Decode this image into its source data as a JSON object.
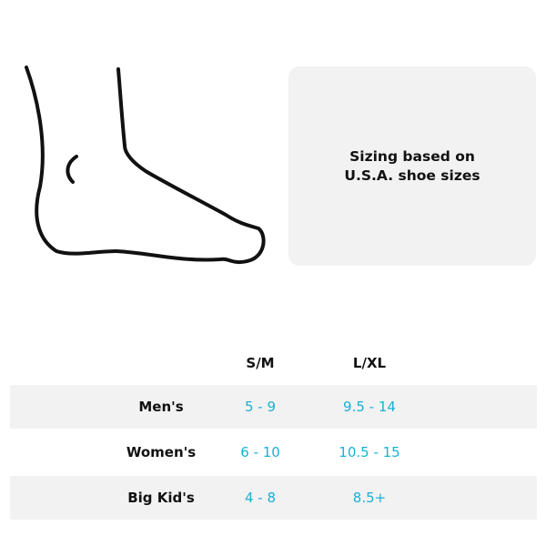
{
  "info": {
    "line1": "Sizing based on",
    "line2": "U.S.A. shoe sizes"
  },
  "columns": [
    "S/M",
    "L/XL"
  ],
  "rows": [
    {
      "label": "Men's",
      "values": [
        "5 - 9",
        "9.5 - 14"
      ],
      "shaded": true
    },
    {
      "label": "Women's",
      "values": [
        "6 - 10",
        "10.5 - 15"
      ],
      "shaded": false
    },
    {
      "label": "Big Kid's",
      "values": [
        "4 - 8",
        "8.5+"
      ],
      "shaded": true
    }
  ],
  "colors": {
    "value_text": "#1ab0d6",
    "panel_bg": "#f2f2f2"
  },
  "icons": [
    "foot-outline-icon"
  ]
}
